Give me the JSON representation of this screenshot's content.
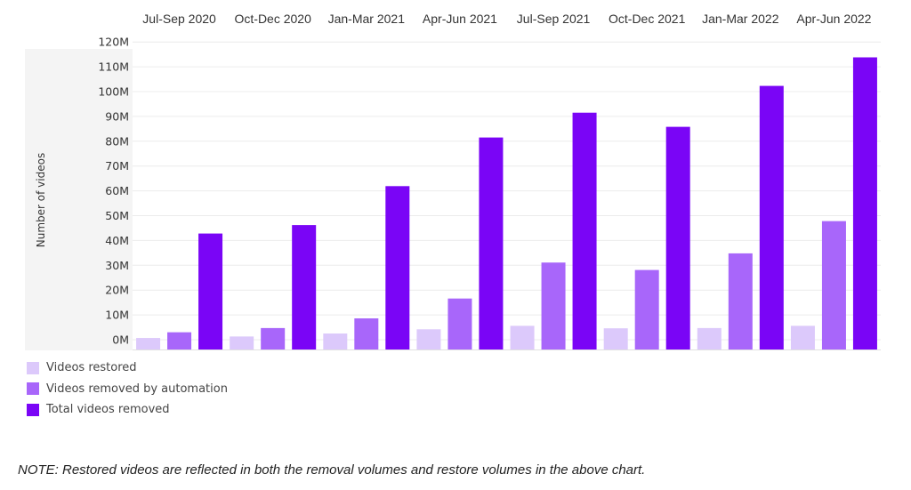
{
  "chart_data": {
    "type": "bar",
    "categories": [
      "Jul-Sep 2020",
      "Oct-Dec 2020",
      "Jan-Mar 2021",
      "Apr-Jun 2021",
      "Jul-Sep 2021",
      "Oct-Dec 2021",
      "Jan-Mar 2022",
      "Apr-Jun 2022"
    ],
    "series": [
      {
        "name": "Videos restored",
        "values": [
          0.7,
          1.3,
          2.5,
          4.2,
          5.6,
          4.6,
          4.7,
          5.6
        ]
      },
      {
        "name": "Videos removed by automation",
        "values": [
          3.0,
          4.7,
          8.6,
          16.6,
          31.1,
          28.1,
          34.8,
          47.8
        ]
      },
      {
        "name": "Total videos removed",
        "values": [
          42.8,
          46.2,
          61.9,
          81.5,
          91.5,
          85.8,
          102.3,
          113.8
        ]
      }
    ],
    "ylabel": "Number of videos",
    "xlabel": "",
    "title": "",
    "ylim": [
      -4,
      119
    ],
    "yticks": [
      0,
      10,
      20,
      30,
      40,
      50,
      60,
      70,
      80,
      90,
      100,
      110,
      120
    ],
    "ytick_labels": [
      "0M",
      "10M",
      "20M",
      "30M",
      "40M",
      "50M",
      "60M",
      "70M",
      "80M",
      "90M",
      "100M",
      "110M",
      "120M"
    ],
    "x_axis_position": "top",
    "legend_position": "bottom-left",
    "grid": true,
    "colors": [
      "#dcc9fb",
      "#a866fa",
      "#7a05f6"
    ]
  },
  "note": "NOTE: Restored videos are reflected in both the removal volumes and restore volumes in the above chart."
}
